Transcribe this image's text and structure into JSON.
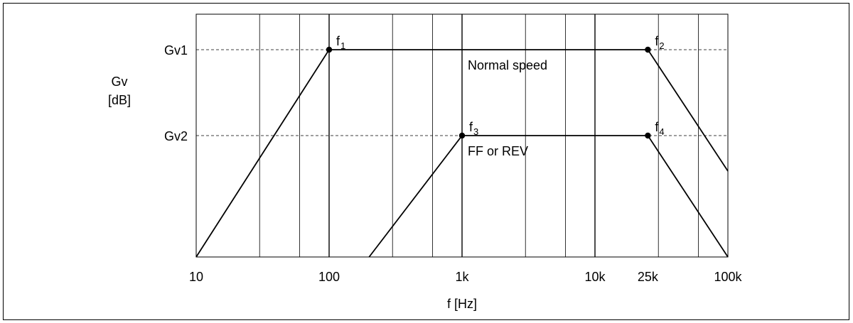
{
  "chart_data": {
    "type": "line",
    "x_scale": "log",
    "xlim": [
      10,
      100000
    ],
    "xlabel": "f [Hz]",
    "ylabel_line1": "Gv",
    "ylabel_line2": "[dB]",
    "x_tick_labels": [
      {
        "value": 10,
        "label": "10"
      },
      {
        "value": 100,
        "label": "100"
      },
      {
        "value": 1000,
        "label": "1k"
      },
      {
        "value": 10000,
        "label": "10k"
      },
      {
        "value": 25000,
        "label": "25k"
      },
      {
        "value": 100000,
        "label": "100k"
      }
    ],
    "y_levels": [
      {
        "name": "Gv1",
        "label": "Gv1"
      },
      {
        "name": "Gv2",
        "label": "Gv2"
      }
    ],
    "grid": true,
    "series": [
      {
        "name": "Normal speed",
        "label": "Normal speed",
        "level": "Gv1",
        "f_low": 100,
        "f_high": 25000,
        "rise_start": 10,
        "fall_end_y_at_xmax": 0.41
      },
      {
        "name": "FF or REV",
        "label": "FF or REV",
        "level": "Gv2",
        "f_low": 1000,
        "f_high": 25000,
        "rise_start": 200,
        "fall_end": 100000
      }
    ],
    "points": [
      {
        "name": "f1",
        "base": "f",
        "sub": "1",
        "x": 100,
        "level": "Gv1"
      },
      {
        "name": "f2",
        "base": "f",
        "sub": "2",
        "x": 25000,
        "level": "Gv1"
      },
      {
        "name": "f3",
        "base": "f",
        "sub": "3",
        "x": 1000,
        "level": "Gv2"
      },
      {
        "name": "f4",
        "base": "f",
        "sub": "4",
        "x": 25000,
        "level": "Gv2"
      }
    ]
  }
}
